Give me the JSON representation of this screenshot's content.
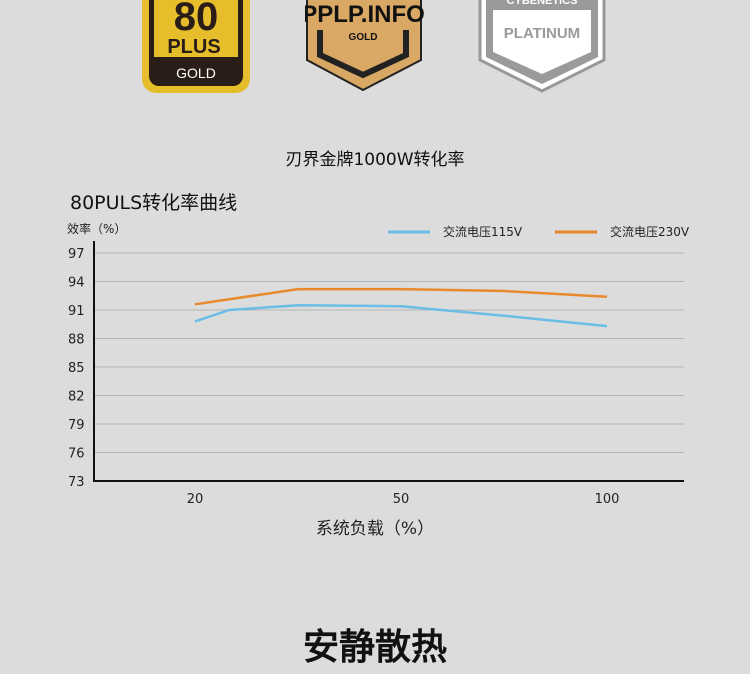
{
  "badges": [
    {
      "top": "80",
      "mid": "PLUS",
      "bottom": "GOLD"
    },
    {
      "top": "PPLP.INFO",
      "bottom": "GOLD"
    },
    {
      "top": "CYBENETICS",
      "bottom": "PLATINUM"
    }
  ],
  "product_title": "刃界金牌1000W转化率",
  "chart_heading": "80PULS转化率曲线",
  "section_title": "安静散热",
  "colors": {
    "series_115": "#6bbde6",
    "series_230": "#e8892b",
    "background": "#dcdcdc"
  },
  "chart_data": {
    "type": "line",
    "title": "80PULS转化率曲线",
    "ylabel": "效率（%）",
    "xlabel": "系统负载（%）",
    "ylim": [
      73,
      97
    ],
    "yticks": [
      97,
      94,
      91,
      88,
      85,
      82,
      79,
      76,
      73
    ],
    "xticks": [
      20,
      50,
      100
    ],
    "grid": true,
    "legend": "top-right",
    "series": [
      {
        "name": "交流电压115V",
        "color": "#6bbde6",
        "x": [
          20,
          25,
          35,
          50,
          75,
          100
        ],
        "y": [
          89.8,
          91.0,
          91.5,
          91.4,
          90.4,
          89.3
        ]
      },
      {
        "name": "交流电压230V",
        "color": "#e8892b",
        "x": [
          20,
          35,
          50,
          75,
          100
        ],
        "y": [
          91.6,
          93.2,
          93.2,
          93.0,
          92.4
        ]
      }
    ]
  }
}
